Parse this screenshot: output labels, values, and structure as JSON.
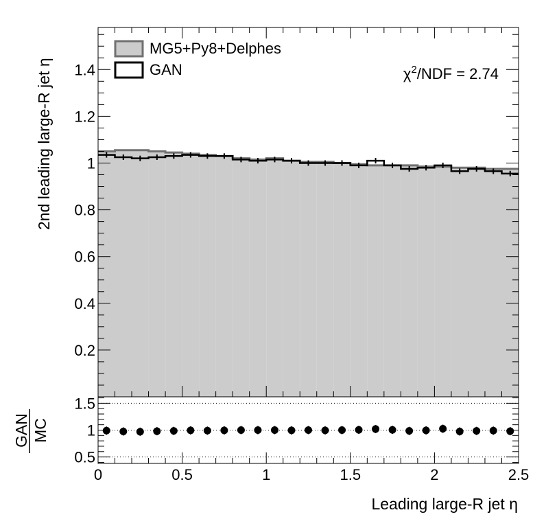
{
  "chart_data": [
    {
      "type": "histogram",
      "panel": "main",
      "ylabel": "2nd leading large-R jet η",
      "ylim": [
        0,
        1.58
      ],
      "yticks": [
        {
          "v": 0.2,
          "t": "0.2"
        },
        {
          "v": 0.4,
          "t": "0.4"
        },
        {
          "v": 0.6,
          "t": "0.6"
        },
        {
          "v": 0.8,
          "t": "0.8"
        },
        {
          "v": 1.0,
          "t": "1"
        },
        {
          "v": 1.2,
          "t": "1.2"
        },
        {
          "v": 1.4,
          "t": "1.4"
        }
      ],
      "xlim": [
        0,
        2.5
      ],
      "bin_edges": [
        0,
        0.1,
        0.2,
        0.3,
        0.4,
        0.5,
        0.6,
        0.7,
        0.8,
        0.9,
        1.0,
        1.1,
        1.2,
        1.3,
        1.4,
        1.5,
        1.6,
        1.7,
        1.8,
        1.9,
        2.0,
        2.1,
        2.2,
        2.3,
        2.4,
        2.5
      ],
      "legend_position": "top-left",
      "series": [
        {
          "name": "MG5+Py8+Delphes",
          "style": "filled",
          "fill_color": "#cccccc",
          "line_color": "#707070",
          "values": [
            1.05,
            1.055,
            1.055,
            1.05,
            1.045,
            1.04,
            1.035,
            1.03,
            1.02,
            1.015,
            1.02,
            1.01,
            1.005,
            1.005,
            1.0,
            0.995,
            0.99,
            0.99,
            0.99,
            0.985,
            0.985,
            0.98,
            0.98,
            0.975,
            0.975
          ]
        },
        {
          "name": "GAN",
          "style": "step",
          "line_color": "#000000",
          "values": [
            1.035,
            1.025,
            1.02,
            1.025,
            1.03,
            1.035,
            1.03,
            1.03,
            1.015,
            1.01,
            1.015,
            1.01,
            1.0,
            1.0,
            1.0,
            0.99,
            1.01,
            0.99,
            0.975,
            0.98,
            0.99,
            0.965,
            0.975,
            0.965,
            0.955
          ]
        }
      ],
      "annotation": {
        "chi_symbol": "χ",
        "exponent": "2",
        "rest": "/NDF = 2.74"
      }
    },
    {
      "type": "scatter",
      "panel": "ratio",
      "ylabel_top": "GAN",
      "ylabel_bottom": "MC",
      "ylim": [
        0.38,
        1.62
      ],
      "yticks": [
        {
          "v": 0.5,
          "t": "0.5"
        },
        {
          "v": 1.0,
          "t": "1"
        },
        {
          "v": 1.5,
          "t": "1.5"
        }
      ],
      "reference_lines": [
        0.5,
        1.0,
        1.5
      ],
      "xlabel": "Leading large-R jet  η",
      "xlim": [
        0,
        2.5
      ],
      "xticks": [
        {
          "v": 0,
          "t": "0"
        },
        {
          "v": 0.5,
          "t": "0.5"
        },
        {
          "v": 1.0,
          "t": "1"
        },
        {
          "v": 1.5,
          "t": "1.5"
        },
        {
          "v": 2.0,
          "t": "2"
        },
        {
          "v": 2.5,
          "t": "2.5"
        }
      ],
      "x": [
        0.05,
        0.15,
        0.25,
        0.35,
        0.45,
        0.55,
        0.65,
        0.75,
        0.85,
        0.95,
        1.05,
        1.15,
        1.25,
        1.35,
        1.45,
        1.55,
        1.65,
        1.75,
        1.85,
        1.95,
        2.05,
        2.15,
        2.25,
        2.35,
        2.45
      ],
      "values": [
        0.99,
        0.975,
        0.97,
        0.98,
        0.985,
        0.995,
        0.99,
        0.995,
        1.0,
        1.0,
        1.0,
        0.995,
        1.0,
        0.995,
        1.0,
        1.005,
        1.02,
        1.005,
        0.985,
        0.995,
        1.025,
        0.975,
        0.985,
        0.99,
        0.98
      ]
    }
  ]
}
